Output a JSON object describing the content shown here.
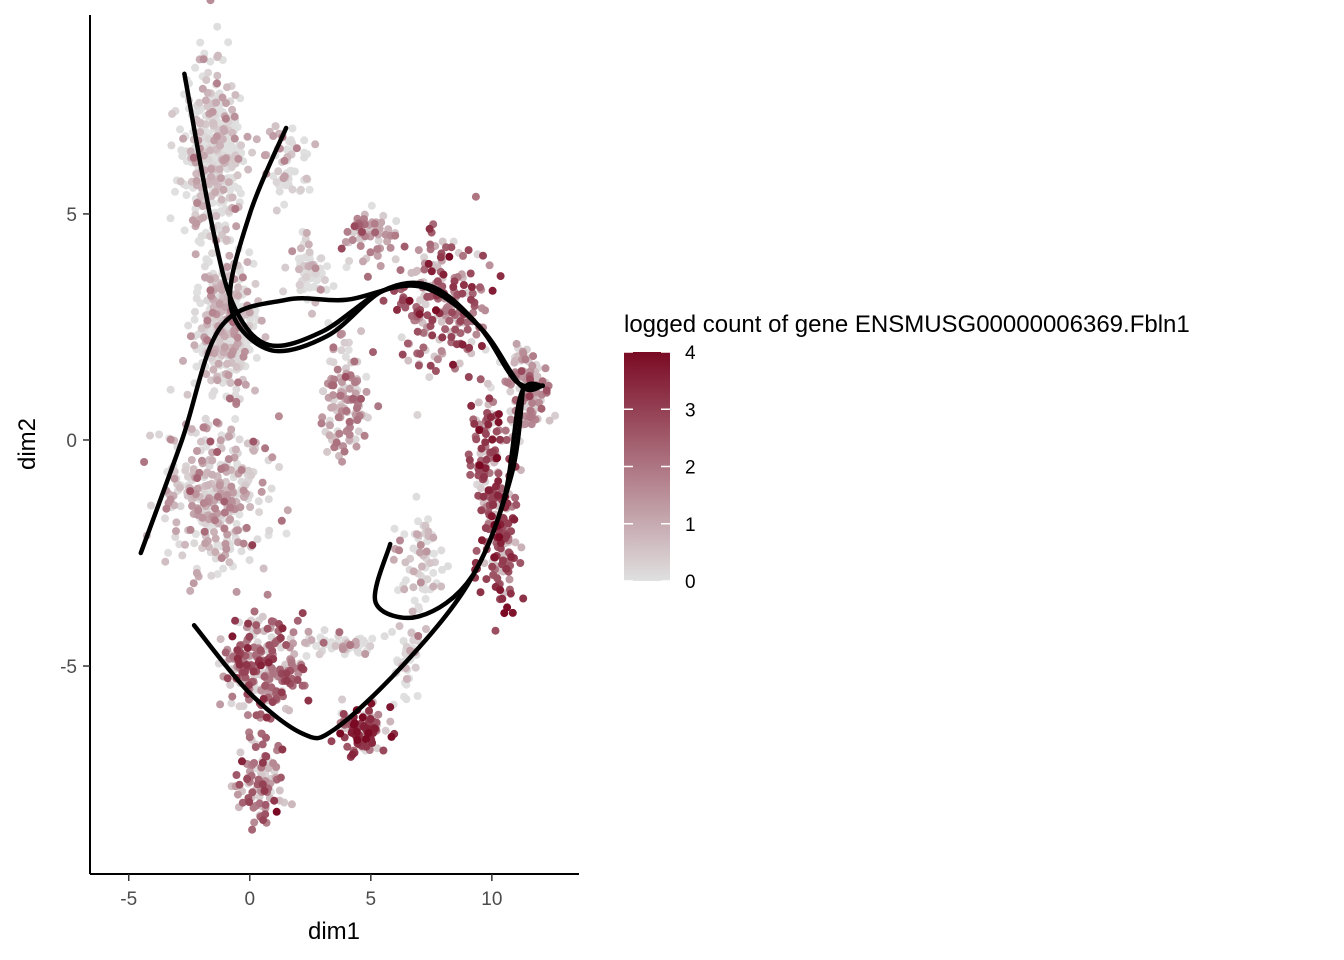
{
  "chart_data": {
    "type": "scatter",
    "xlabel": "dim1",
    "ylabel": "dim2",
    "xlim": [
      -6.6,
      13.6
    ],
    "ylim": [
      -9.6,
      9.4
    ],
    "x_ticks": [
      -5,
      0,
      5,
      10
    ],
    "y_ticks": [
      -5,
      0,
      5
    ],
    "grid": false,
    "legend": {
      "title": "logged count of gene ENSMUSG00000006369.Fbln1",
      "placement": "right",
      "min": 0,
      "max": 4,
      "ticks": [
        0,
        1,
        2,
        3,
        4
      ],
      "low_color": "#e0e0e0",
      "high_color": "#7a0a24"
    },
    "clusters": [
      {
        "center": [
          -1.5,
          6.3
        ],
        "spread": [
          1.0,
          1.5
        ],
        "n": 420,
        "mean_value": 0.15
      },
      {
        "center": [
          1.5,
          6.0
        ],
        "spread": [
          0.9,
          0.9
        ],
        "n": 60,
        "mean_value": 0.25
      },
      {
        "center": [
          -1.0,
          2.5
        ],
        "spread": [
          1.0,
          1.2
        ],
        "n": 330,
        "mean_value": 0.35
      },
      {
        "center": [
          -1.5,
          -1.2
        ],
        "spread": [
          1.8,
          1.4
        ],
        "n": 320,
        "mean_value": 0.8
      },
      {
        "center": [
          2.5,
          3.7
        ],
        "spread": [
          0.7,
          0.6
        ],
        "n": 60,
        "mean_value": 0.2
      },
      {
        "center": [
          5.0,
          4.5
        ],
        "spread": [
          1.0,
          0.5
        ],
        "n": 60,
        "mean_value": 1.6
      },
      {
        "center": [
          8.0,
          3.0
        ],
        "spread": [
          1.6,
          1.2
        ],
        "n": 200,
        "mean_value": 2.4
      },
      {
        "center": [
          11.5,
          1.2
        ],
        "spread": [
          0.8,
          0.8
        ],
        "n": 110,
        "mean_value": 1.2
      },
      {
        "center": [
          4.0,
          0.8
        ],
        "spread": [
          0.8,
          1.0
        ],
        "n": 120,
        "mean_value": 1.4
      },
      {
        "center": [
          9.8,
          -0.4
        ],
        "spread": [
          0.6,
          1.3
        ],
        "n": 110,
        "mean_value": 2.6
      },
      {
        "center": [
          10.3,
          -2.2
        ],
        "spread": [
          0.6,
          1.2
        ],
        "n": 130,
        "mean_value": 3.0
      },
      {
        "center": [
          7.0,
          -2.8
        ],
        "spread": [
          0.8,
          1.0
        ],
        "n": 70,
        "mean_value": 0.3
      },
      {
        "center": [
          0.5,
          -5.0
        ],
        "spread": [
          1.4,
          0.9
        ],
        "n": 230,
        "mean_value": 2.3
      },
      {
        "center": [
          0.4,
          -7.5
        ],
        "spread": [
          0.8,
          0.9
        ],
        "n": 100,
        "mean_value": 2.0
      },
      {
        "center": [
          4.6,
          -6.4
        ],
        "spread": [
          0.8,
          0.4
        ],
        "n": 110,
        "mean_value": 3.0
      },
      {
        "center": [
          3.8,
          -4.5
        ],
        "spread": [
          1.4,
          0.3
        ],
        "n": 50,
        "mean_value": 0.4
      },
      {
        "center": [
          6.5,
          -5.0
        ],
        "spread": [
          0.5,
          0.8
        ],
        "n": 40,
        "mean_value": 0.2
      }
    ],
    "curves": [
      [
        [
          -2.7,
          8.1
        ],
        [
          -1.5,
          4.6
        ],
        [
          -0.6,
          2.9
        ],
        [
          0.8,
          2.1
        ],
        [
          3.0,
          2.4
        ],
        [
          5.5,
          3.3
        ],
        [
          7.5,
          3.4
        ],
        [
          9.5,
          2.5
        ],
        [
          11.0,
          1.3
        ],
        [
          12.1,
          1.2
        ]
      ],
      [
        [
          1.5,
          6.9
        ],
        [
          0.0,
          5.0
        ],
        [
          -0.8,
          3.0
        ],
        [
          0.8,
          2.0
        ],
        [
          3.2,
          2.3
        ],
        [
          5.5,
          3.3
        ],
        [
          7.5,
          3.4
        ],
        [
          9.5,
          2.5
        ],
        [
          11.0,
          1.3
        ],
        [
          12.1,
          1.2
        ]
      ],
      [
        [
          -4.5,
          -2.5
        ],
        [
          -2.8,
          0.0
        ],
        [
          -1.2,
          2.5
        ],
        [
          1.5,
          3.1
        ],
        [
          4.0,
          3.1
        ],
        [
          7.0,
          3.4
        ],
        [
          9.5,
          2.5
        ],
        [
          11.2,
          1.2
        ],
        [
          12.1,
          1.2
        ]
      ],
      [
        [
          12.1,
          1.2
        ],
        [
          11.2,
          1.0
        ],
        [
          10.5,
          -1.3
        ],
        [
          9.0,
          -3.2
        ],
        [
          6.3,
          -5.0
        ],
        [
          3.5,
          -6.4
        ],
        [
          2.2,
          -6.5
        ],
        [
          0.0,
          -5.6
        ],
        [
          -2.3,
          -4.1
        ]
      ],
      [
        [
          11.3,
          1.2
        ],
        [
          10.8,
          -0.8
        ],
        [
          9.2,
          -3.0
        ],
        [
          7.0,
          -3.9
        ],
        [
          5.2,
          -3.6
        ],
        [
          5.8,
          -2.3
        ]
      ]
    ]
  }
}
